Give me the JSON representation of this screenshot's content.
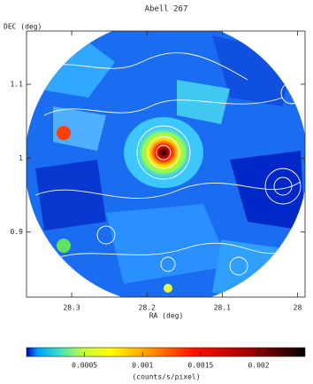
{
  "chart_data": {
    "type": "map",
    "title": "Abell 267",
    "xlabel": "RA (deg)",
    "ylabel": "DEC (deg)",
    "xlim": [
      28.36,
      27.99
    ],
    "xticks": [
      28.3,
      28.2,
      28.1,
      28
    ],
    "ylim": [
      0.812,
      1.172
    ],
    "yticks": [
      0.9,
      1,
      1.1
    ],
    "colorbar": {
      "label": "(counts/s/pixel)",
      "lim": [
        0,
        0.0024
      ],
      "ticks": [
        0.0005,
        0.001,
        0.0015,
        0.002
      ]
    }
  }
}
